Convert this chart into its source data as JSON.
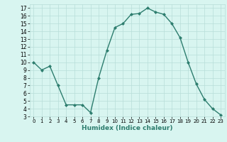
{
  "x": [
    0,
    1,
    2,
    3,
    4,
    5,
    6,
    7,
    8,
    9,
    10,
    11,
    12,
    13,
    14,
    15,
    16,
    17,
    18,
    19,
    20,
    21,
    22,
    23
  ],
  "y": [
    10,
    9,
    9.5,
    7,
    4.5,
    4.5,
    4.5,
    3.5,
    8,
    11.5,
    14.5,
    15,
    16.2,
    16.3,
    17,
    16.5,
    16.2,
    15,
    13.2,
    10,
    7.2,
    5.2,
    4,
    3.2
  ],
  "xlabel": "Humidex (Indice chaleur)",
  "line_color": "#2d7d6e",
  "marker": "D",
  "marker_size": 2,
  "bg_color": "#d8f5f0",
  "grid_color": "#b8ddd8",
  "ylim": [
    3,
    17.5
  ],
  "xlim": [
    -0.5,
    23.5
  ],
  "yticks": [
    3,
    4,
    5,
    6,
    7,
    8,
    9,
    10,
    11,
    12,
    13,
    14,
    15,
    16,
    17
  ],
  "xticks": [
    0,
    1,
    2,
    3,
    4,
    5,
    6,
    7,
    8,
    9,
    10,
    11,
    12,
    13,
    14,
    15,
    16,
    17,
    18,
    19,
    20,
    21,
    22,
    23
  ]
}
